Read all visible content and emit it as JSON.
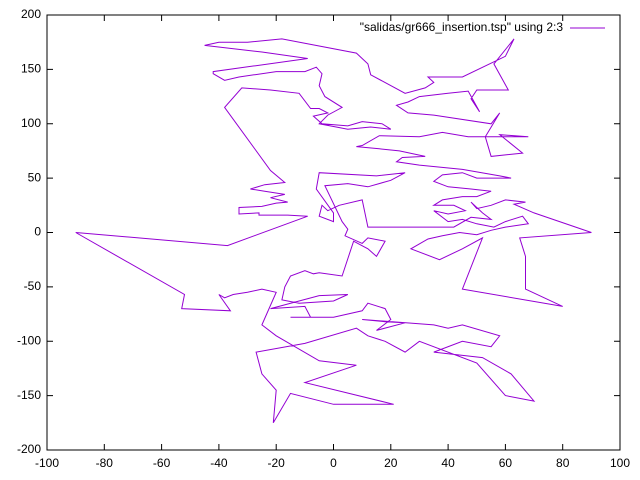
{
  "chart_data": {
    "type": "line",
    "legend": "top-right",
    "xlim": [
      -100,
      100
    ],
    "xticks": [
      -100,
      -80,
      -60,
      -40,
      -20,
      0,
      20,
      40,
      60,
      80,
      100
    ],
    "ylim": [
      -200,
      200
    ],
    "yticks": [
      -200,
      -150,
      -100,
      -50,
      0,
      50,
      100,
      150,
      200
    ],
    "x": [
      -90,
      -37,
      -9,
      -16,
      -26,
      -26,
      -33,
      -33,
      -25,
      -20,
      -16,
      -22,
      -17,
      -24,
      -29,
      -24,
      -17,
      -22,
      -38,
      -32,
      -22,
      -12,
      -8,
      -5,
      -2,
      -7,
      -4,
      5,
      10,
      17,
      20,
      13,
      5,
      -5,
      -2,
      3,
      -3,
      -5,
      -4,
      -6,
      -10,
      -20,
      -33,
      -38,
      -42,
      -42,
      -9,
      -25,
      -45,
      -40,
      -30,
      -18,
      8,
      12,
      13,
      25,
      32,
      35,
      33,
      45,
      60,
      63,
      56,
      61,
      50,
      48,
      51,
      47,
      40,
      30,
      26,
      22,
      26,
      35,
      55,
      58,
      53,
      55,
      66,
      58,
      68,
      47,
      38,
      30,
      16,
      10,
      8,
      16,
      23,
      32,
      24,
      22,
      30,
      45,
      58,
      62,
      50,
      45,
      38,
      35,
      40,
      48,
      55,
      50,
      45,
      38,
      35,
      42,
      46,
      40,
      35,
      40,
      45,
      50,
      56,
      60,
      66,
      68,
      60,
      55,
      50,
      44,
      38,
      33,
      27,
      37,
      45,
      52,
      45,
      80,
      67,
      67,
      65,
      90,
      70,
      63,
      67,
      60,
      55,
      50,
      48,
      52,
      55,
      48,
      42,
      30,
      20,
      12,
      10,
      2,
      -2,
      -4,
      -5,
      0,
      0,
      -6,
      -5,
      15,
      25,
      20,
      12,
      5,
      -3,
      3,
      5,
      4,
      10,
      12,
      18,
      15,
      12,
      7,
      3,
      -5,
      -7,
      -10,
      -15,
      -17,
      -18,
      -12,
      0,
      5,
      -5,
      -22,
      -10,
      -8,
      -15,
      0,
      10,
      12,
      18,
      20,
      15,
      25,
      18,
      10,
      35,
      40,
      45,
      58,
      55,
      45,
      35,
      52,
      62,
      70,
      60,
      50,
      30,
      25,
      18,
      12,
      8,
      -10,
      -27,
      -25,
      -20,
      -21,
      -15,
      0,
      21,
      -10,
      8,
      -5,
      -20,
      -25,
      -20,
      -25,
      -30,
      -35,
      -38,
      -40,
      -36,
      -53,
      -52,
      -90
    ],
    "series": [
      {
        "name": "\"salidas/gr666_insertion.tsp\" using 2:3",
        "color": "#9400d3",
        "values": [
          0,
          -12,
          15,
          16,
          16,
          18,
          17,
          23,
          24,
          27,
          28,
          32,
          35,
          38,
          40,
          44,
          46,
          57,
          115,
          133,
          131,
          128,
          114,
          114,
          110,
          107,
          100,
          98,
          102,
          100,
          95,
          97,
          95,
          100,
          108,
          115,
          125,
          135,
          146,
          152,
          148,
          148,
          143,
          140,
          146,
          148,
          160,
          166,
          172,
          175,
          175,
          178,
          165,
          155,
          145,
          128,
          133,
          138,
          143,
          143,
          162,
          178,
          155,
          131,
          131,
          123,
          111,
          130,
          128,
          125,
          120,
          117,
          110,
          108,
          100,
          110,
          88,
          70,
          73,
          90,
          88,
          88,
          92,
          88,
          89,
          80,
          79,
          77,
          75,
          70,
          69,
          65,
          62,
          58,
          52,
          50,
          50,
          55,
          53,
          47,
          42,
          40,
          38,
          33,
          33,
          30,
          25,
          25,
          20,
          17,
          20,
          10,
          12,
          8,
          5,
          10,
          15,
          8,
          5,
          2,
          -2,
          0,
          -3,
          -6,
          -15,
          -25,
          -15,
          -5,
          -52,
          -68,
          -52,
          -22,
          -5,
          0,
          18,
          26,
          28,
          30,
          25,
          22,
          28,
          18,
          12,
          14,
          5,
          5,
          5,
          5,
          30,
          25,
          20,
          25,
          15,
          10,
          18,
          40,
          55,
          52,
          55,
          48,
          42,
          45,
          43,
          10,
          3,
          -3,
          -10,
          -5,
          -8,
          -22,
          -15,
          -8,
          -40,
          -37,
          -38,
          -35,
          -40,
          -50,
          -62,
          -65,
          -63,
          -57,
          -58,
          -70,
          -68,
          -78,
          -78,
          -78,
          -72,
          -65,
          -70,
          -80,
          -90,
          -83,
          -82,
          -80,
          -85,
          -88,
          -85,
          -95,
          -105,
          -100,
          -110,
          -115,
          -130,
          -155,
          -150,
          -120,
          -100,
          -110,
          -100,
          -95,
          -88,
          -102,
          -110,
          -130,
          -145,
          -175,
          -148,
          -158,
          -158,
          -138,
          -122,
          -118,
          -95,
          -85,
          -55,
          -52,
          -55,
          -57,
          -60,
          -57,
          -72,
          -70,
          -57,
          0
        ]
      }
    ]
  }
}
